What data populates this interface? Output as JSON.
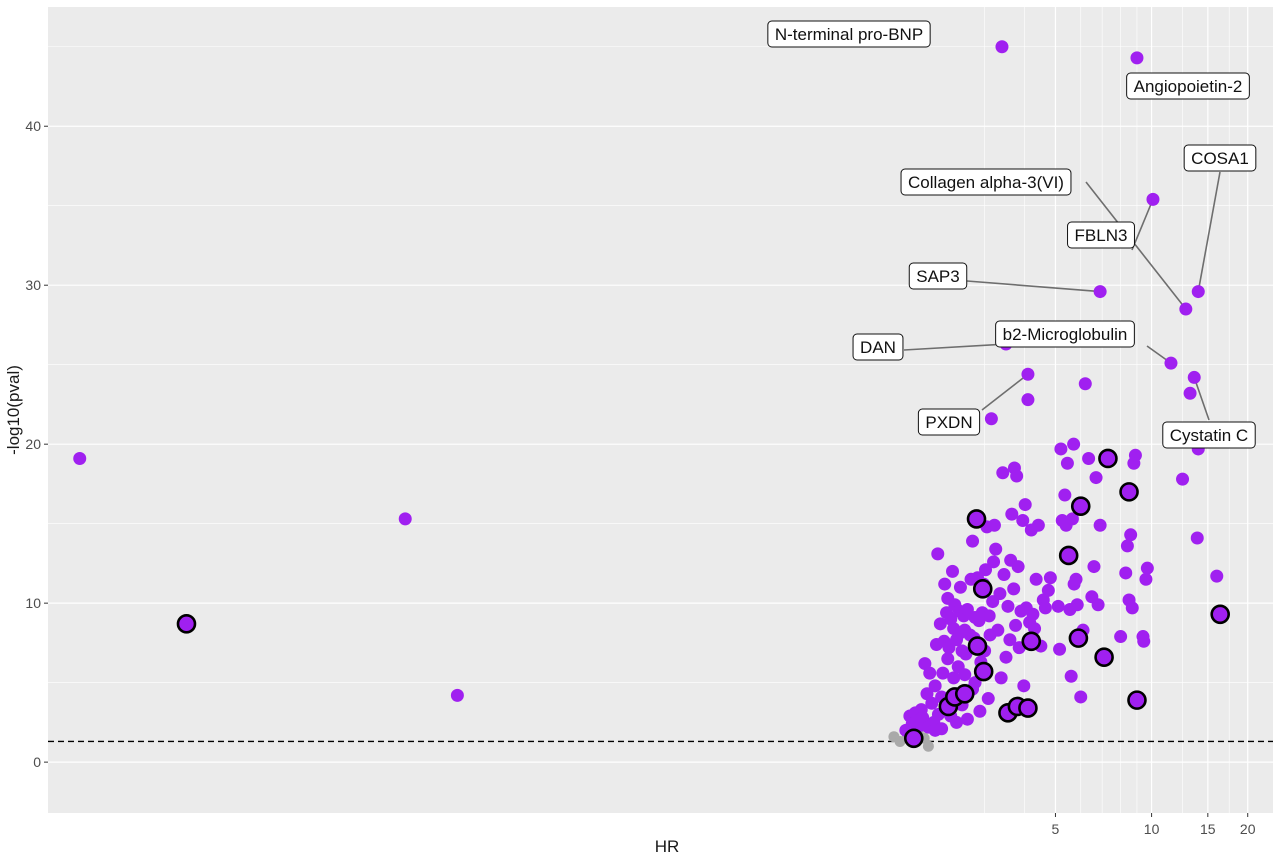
{
  "chart_data": {
    "type": "scatter",
    "title": "",
    "xlabel": "HR",
    "ylabel": "-log10(pval)",
    "x_scale": "log",
    "xlim": [
      0.0035,
      24
    ],
    "ylim": [
      -3.2,
      47.5
    ],
    "x_ticks": [
      5,
      10,
      15,
      20
    ],
    "y_ticks": [
      0,
      10,
      20,
      30,
      40
    ],
    "significance_line_y": 1.3,
    "grid": true,
    "colors": {
      "significant": "#a020f0",
      "not_significant": "#a9a9a9",
      "highlight_outline": "#000000",
      "panel_background": "#ebebeb",
      "gridline": "#ffffff",
      "threshold_line": "#000000"
    },
    "labeled_points": [
      {
        "label": "N-terminal pro-BNP",
        "x": 3.4,
        "y": 45.0
      },
      {
        "label": "Angiopoietin-2",
        "x": 9.0,
        "y": 44.3
      },
      {
        "label": "COSA1",
        "x": 14.0,
        "y": 29.6
      },
      {
        "label": "Collagen alpha-3(VI)",
        "x": 12.8,
        "y": 28.5
      },
      {
        "label": "FBLN3",
        "x": 10.1,
        "y": 35.4
      },
      {
        "label": "SAP3",
        "x": 6.9,
        "y": 29.6
      },
      {
        "label": "b2-Microglobulin",
        "x": 11.5,
        "y": 25.1
      },
      {
        "label": "DAN",
        "x": 3.5,
        "y": 26.3
      },
      {
        "label": "PXDN",
        "x": 4.1,
        "y": 24.4
      },
      {
        "label": "Cystatin C",
        "x": 13.6,
        "y": 24.2
      }
    ],
    "points": [
      [
        0.0044,
        19.1,
        "s",
        0
      ],
      [
        0.046,
        15.3,
        "s",
        0
      ],
      [
        0.067,
        4.2,
        "s",
        0
      ],
      [
        0.0095,
        8.7,
        "s",
        1
      ],
      [
        1.56,
        1.6,
        "n",
        0
      ],
      [
        1.63,
        1.3,
        "n",
        0
      ],
      [
        1.72,
        1.6,
        "n",
        0
      ],
      [
        1.86,
        1.8,
        "n",
        0
      ],
      [
        1.94,
        1.5,
        "n",
        0
      ],
      [
        2.0,
        1.0,
        "n",
        0
      ],
      [
        1.8,
        1.4,
        "n",
        0
      ],
      [
        1.8,
        1.5,
        "s",
        1
      ],
      [
        2.31,
        3.5,
        "s",
        1
      ],
      [
        2.42,
        4.1,
        "s",
        1
      ],
      [
        2.6,
        4.3,
        "s",
        1
      ],
      [
        2.85,
        7.3,
        "s",
        1
      ],
      [
        2.98,
        5.7,
        "s",
        1
      ],
      [
        2.83,
        15.3,
        "s",
        1
      ],
      [
        2.96,
        10.9,
        "s",
        1
      ],
      [
        3.55,
        3.1,
        "s",
        1
      ],
      [
        3.8,
        3.5,
        "s",
        1
      ],
      [
        4.1,
        3.4,
        "s",
        1
      ],
      [
        4.2,
        7.6,
        "s",
        1
      ],
      [
        5.5,
        13.0,
        "s",
        1
      ],
      [
        6.0,
        16.1,
        "s",
        1
      ],
      [
        5.9,
        7.8,
        "s",
        1
      ],
      [
        7.1,
        6.6,
        "s",
        1
      ],
      [
        7.3,
        19.1,
        "s",
        1
      ],
      [
        8.5,
        17.0,
        "s",
        1
      ],
      [
        9.0,
        3.9,
        "s",
        1
      ],
      [
        16.4,
        9.3,
        "s",
        1
      ],
      [
        1.7,
        2.0,
        "s",
        0
      ],
      [
        1.75,
        2.9,
        "s",
        0
      ],
      [
        1.78,
        2.4,
        "s",
        0
      ],
      [
        1.82,
        3.1,
        "s",
        0
      ],
      [
        1.84,
        2.6,
        "s",
        0
      ],
      [
        1.88,
        2.3,
        "s",
        0
      ],
      [
        1.9,
        3.3,
        "s",
        0
      ],
      [
        1.92,
        2.8,
        "s",
        0
      ],
      [
        1.95,
        6.2,
        "s",
        0
      ],
      [
        1.98,
        4.3,
        "s",
        0
      ],
      [
        2.0,
        2.2,
        "s",
        0
      ],
      [
        2.02,
        5.6,
        "s",
        0
      ],
      [
        2.05,
        3.7,
        "s",
        0
      ],
      [
        2.08,
        2.5,
        "s",
        0
      ],
      [
        2.1,
        4.8,
        "s",
        0
      ],
      [
        2.1,
        2.0,
        "s",
        0
      ],
      [
        2.12,
        7.4,
        "s",
        0
      ],
      [
        2.14,
        13.1,
        "s",
        0
      ],
      [
        2.15,
        3.0,
        "s",
        0
      ],
      [
        2.18,
        8.7,
        "s",
        0
      ],
      [
        2.2,
        2.1,
        "s",
        0
      ],
      [
        2.2,
        4.1,
        "s",
        0
      ],
      [
        2.22,
        5.6,
        "s",
        0
      ],
      [
        2.24,
        7.6,
        "s",
        0
      ],
      [
        2.25,
        11.2,
        "s",
        0
      ],
      [
        2.26,
        3.3,
        "s",
        0
      ],
      [
        2.28,
        9.4,
        "s",
        0
      ],
      [
        2.3,
        6.5,
        "s",
        0
      ],
      [
        2.3,
        10.3,
        "s",
        0
      ],
      [
        2.32,
        7.2,
        "s",
        0
      ],
      [
        2.35,
        9.0,
        "s",
        0
      ],
      [
        2.35,
        2.9,
        "s",
        0
      ],
      [
        2.38,
        12.0,
        "s",
        0
      ],
      [
        2.4,
        8.4,
        "s",
        0
      ],
      [
        2.4,
        5.3,
        "s",
        0
      ],
      [
        2.42,
        9.9,
        "s",
        0
      ],
      [
        2.45,
        7.7,
        "s",
        0
      ],
      [
        2.45,
        2.5,
        "s",
        0
      ],
      [
        2.48,
        6.0,
        "s",
        0
      ],
      [
        2.5,
        8.1,
        "s",
        0
      ],
      [
        2.5,
        9.5,
        "s",
        0
      ],
      [
        2.52,
        11.0,
        "s",
        0
      ],
      [
        2.55,
        7.0,
        "s",
        0
      ],
      [
        2.55,
        3.6,
        "s",
        0
      ],
      [
        2.58,
        9.2,
        "s",
        0
      ],
      [
        2.6,
        8.3,
        "s",
        0
      ],
      [
        2.6,
        5.5,
        "s",
        0
      ],
      [
        2.62,
        6.8,
        "s",
        0
      ],
      [
        2.65,
        9.6,
        "s",
        0
      ],
      [
        2.65,
        2.7,
        "s",
        0
      ],
      [
        2.7,
        8.0,
        "s",
        0
      ],
      [
        2.72,
        11.5,
        "s",
        0
      ],
      [
        2.75,
        13.9,
        "s",
        0
      ],
      [
        2.75,
        4.6,
        "s",
        0
      ],
      [
        2.78,
        7.8,
        "s",
        0
      ],
      [
        2.8,
        9.1,
        "s",
        0
      ],
      [
        2.8,
        5.0,
        "s",
        0
      ],
      [
        2.85,
        11.6,
        "s",
        0
      ],
      [
        2.88,
        8.9,
        "s",
        0
      ],
      [
        2.9,
        3.2,
        "s",
        0
      ],
      [
        2.92,
        6.3,
        "s",
        0
      ],
      [
        2.95,
        9.4,
        "s",
        0
      ],
      [
        2.98,
        11.2,
        "s",
        0
      ],
      [
        3.0,
        7.0,
        "s",
        0
      ],
      [
        3.02,
        12.1,
        "s",
        0
      ],
      [
        3.05,
        14.8,
        "s",
        0
      ],
      [
        3.08,
        4.0,
        "s",
        0
      ],
      [
        3.1,
        9.2,
        "s",
        0
      ],
      [
        3.12,
        8.0,
        "s",
        0
      ],
      [
        3.15,
        21.6,
        "s",
        0
      ],
      [
        3.18,
        10.1,
        "s",
        0
      ],
      [
        3.2,
        12.6,
        "s",
        0
      ],
      [
        3.22,
        14.9,
        "s",
        0
      ],
      [
        3.25,
        13.4,
        "s",
        0
      ],
      [
        3.3,
        8.3,
        "s",
        0
      ],
      [
        3.35,
        10.6,
        "s",
        0
      ],
      [
        3.38,
        5.3,
        "s",
        0
      ],
      [
        3.42,
        18.2,
        "s",
        0
      ],
      [
        3.45,
        11.8,
        "s",
        0
      ],
      [
        3.5,
        6.6,
        "s",
        0
      ],
      [
        3.55,
        9.8,
        "s",
        0
      ],
      [
        3.6,
        7.7,
        "s",
        0
      ],
      [
        3.62,
        12.7,
        "s",
        0
      ],
      [
        3.65,
        15.6,
        "s",
        0
      ],
      [
        3.7,
        10.9,
        "s",
        0
      ],
      [
        3.72,
        18.5,
        "s",
        0
      ],
      [
        3.75,
        8.6,
        "s",
        0
      ],
      [
        3.78,
        18.0,
        "s",
        0
      ],
      [
        3.82,
        12.3,
        "s",
        0
      ],
      [
        3.85,
        7.2,
        "s",
        0
      ],
      [
        3.9,
        9.5,
        "s",
        0
      ],
      [
        3.95,
        15.2,
        "s",
        0
      ],
      [
        3.98,
        4.8,
        "s",
        0
      ],
      [
        4.02,
        16.2,
        "s",
        0
      ],
      [
        4.05,
        9.7,
        "s",
        0
      ],
      [
        4.1,
        22.8,
        "s",
        0
      ],
      [
        4.15,
        8.8,
        "s",
        0
      ],
      [
        4.2,
        14.6,
        "s",
        0
      ],
      [
        4.25,
        9.3,
        "s",
        0
      ],
      [
        4.3,
        8.4,
        "s",
        0
      ],
      [
        4.35,
        11.5,
        "s",
        0
      ],
      [
        4.42,
        14.9,
        "s",
        0
      ],
      [
        4.5,
        7.3,
        "s",
        0
      ],
      [
        4.58,
        10.2,
        "s",
        0
      ],
      [
        4.65,
        9.7,
        "s",
        0
      ],
      [
        4.75,
        10.8,
        "s",
        0
      ],
      [
        4.82,
        11.6,
        "s",
        0
      ],
      [
        5.1,
        9.8,
        "s",
        0
      ],
      [
        5.15,
        7.1,
        "s",
        0
      ],
      [
        5.2,
        19.7,
        "s",
        0
      ],
      [
        5.25,
        15.2,
        "s",
        0
      ],
      [
        5.35,
        16.8,
        "s",
        0
      ],
      [
        5.4,
        14.9,
        "s",
        0
      ],
      [
        5.45,
        18.8,
        "s",
        0
      ],
      [
        5.55,
        9.6,
        "s",
        0
      ],
      [
        5.6,
        5.4,
        "s",
        0
      ],
      [
        5.65,
        15.3,
        "s",
        0
      ],
      [
        5.7,
        20.0,
        "s",
        0
      ],
      [
        5.72,
        11.2,
        "s",
        0
      ],
      [
        5.8,
        11.5,
        "s",
        0
      ],
      [
        5.85,
        9.9,
        "s",
        0
      ],
      [
        6.0,
        4.1,
        "s",
        0
      ],
      [
        6.1,
        8.3,
        "s",
        0
      ],
      [
        6.2,
        23.8,
        "s",
        0
      ],
      [
        6.35,
        19.1,
        "s",
        0
      ],
      [
        6.5,
        10.4,
        "s",
        0
      ],
      [
        6.6,
        12.3,
        "s",
        0
      ],
      [
        6.7,
        17.9,
        "s",
        0
      ],
      [
        6.8,
        9.9,
        "s",
        0
      ],
      [
        6.9,
        14.9,
        "s",
        0
      ],
      [
        8.0,
        7.9,
        "s",
        0
      ],
      [
        8.3,
        11.9,
        "s",
        0
      ],
      [
        8.4,
        13.6,
        "s",
        0
      ],
      [
        8.5,
        10.2,
        "s",
        0
      ],
      [
        8.6,
        14.3,
        "s",
        0
      ],
      [
        8.7,
        9.7,
        "s",
        0
      ],
      [
        8.8,
        18.8,
        "s",
        0
      ],
      [
        8.9,
        19.3,
        "s",
        0
      ],
      [
        9.4,
        7.9,
        "s",
        0
      ],
      [
        9.45,
        7.6,
        "s",
        0
      ],
      [
        9.6,
        11.5,
        "s",
        0
      ],
      [
        9.7,
        12.2,
        "s",
        0
      ],
      [
        12.5,
        17.8,
        "s",
        0
      ],
      [
        13.2,
        23.2,
        "s",
        0
      ],
      [
        13.9,
        14.1,
        "s",
        0
      ],
      [
        14.0,
        19.7,
        "s",
        0
      ],
      [
        16.0,
        11.7,
        "s",
        0
      ]
    ]
  }
}
